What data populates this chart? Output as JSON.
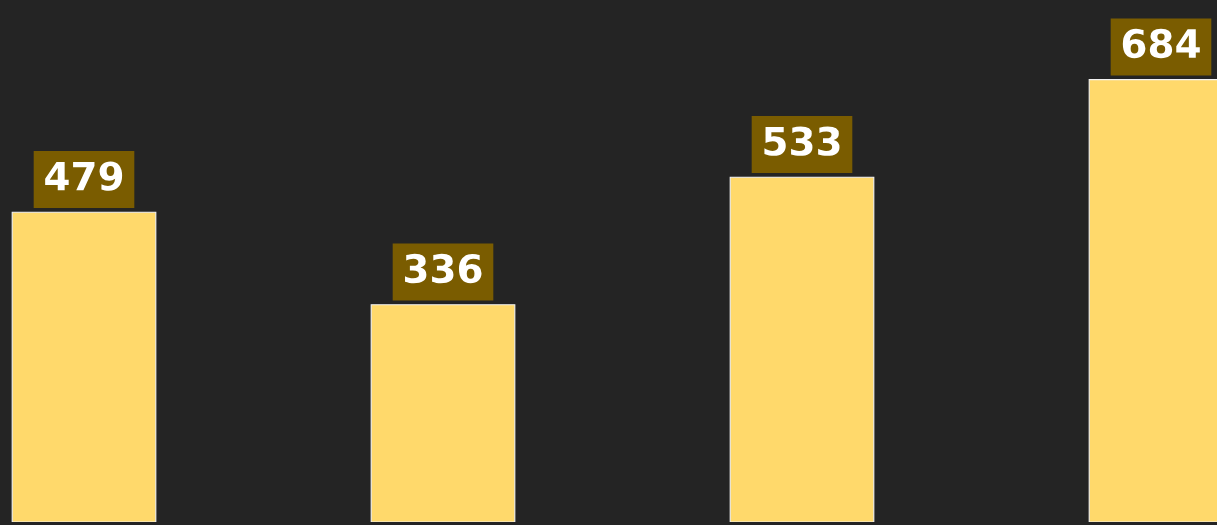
{
  "chart_data": {
    "type": "bar",
    "categories": [
      null,
      null,
      null,
      null
    ],
    "values": [
      479,
      336,
      533,
      684
    ],
    "color": "#ffd96b",
    "data_labels": true
  }
}
